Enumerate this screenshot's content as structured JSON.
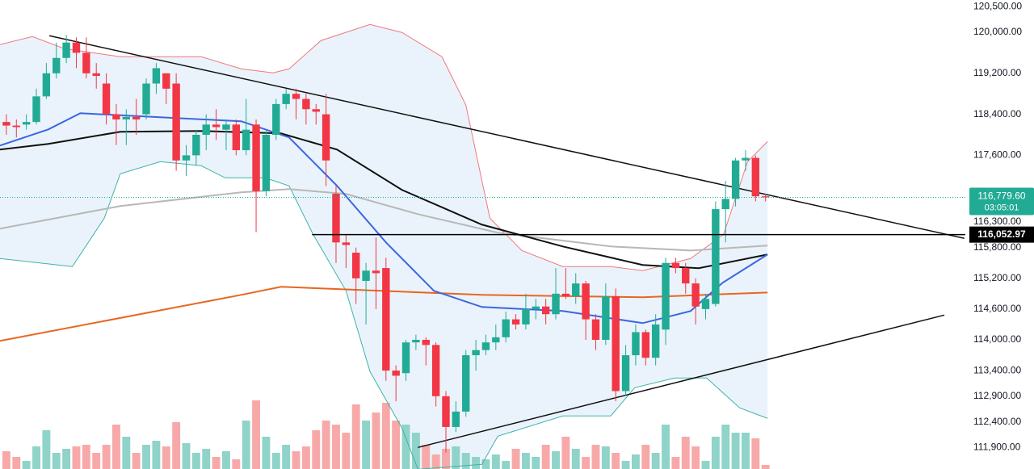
{
  "chart_data": {
    "type": "candlestick",
    "xlim": [
      -0.64,
      96
    ],
    "ylim": [
      111480,
      120630
    ],
    "yticks": [
      {
        "value": 120500,
        "label": "120,500.00"
      },
      {
        "value": 120000,
        "label": "120,000.00"
      },
      {
        "value": 119200,
        "label": "119,200.00"
      },
      {
        "value": 118400,
        "label": "118,400.00"
      },
      {
        "value": 117600,
        "label": "117,600.00"
      },
      {
        "value": 116300,
        "label": "116,300.00"
      },
      {
        "value": 115800,
        "label": "115,800.00"
      },
      {
        "value": 115200,
        "label": "115,200.00"
      },
      {
        "value": 114600,
        "label": "114,600.00"
      },
      {
        "value": 114000,
        "label": "114,000.00"
      },
      {
        "value": 113400,
        "label": "113,400.00"
      },
      {
        "value": 112900,
        "label": "112,900.00"
      },
      {
        "value": 112400,
        "label": "112,400.00"
      },
      {
        "value": 111900,
        "label": "111,900.00"
      }
    ],
    "up_color": "#22ab94",
    "down_color": "#f23645",
    "candles": {
      "open": [
        118250,
        118180,
        118200,
        118250,
        118750,
        119200,
        119500,
        119800,
        119600,
        119200,
        119000,
        118400,
        118300,
        118350,
        118400,
        119000,
        119200,
        119000,
        117500,
        117600,
        118000,
        118200,
        118100,
        118200,
        117700,
        118200,
        116900,
        118000,
        118600,
        118800,
        118700,
        118500,
        118400,
        116850,
        115900,
        115700,
        115150,
        115350,
        115400,
        113400,
        113350,
        113950,
        114000,
        113900,
        112900,
        112300,
        112600,
        113700,
        113800,
        113950,
        114050,
        114400,
        114300,
        114600,
        114650,
        114500,
        114900,
        114850,
        115100,
        114400,
        114000,
        114850,
        113000,
        113700,
        114150,
        113650,
        114200,
        115500,
        115400,
        115100,
        114600,
        114700,
        116550,
        116750,
        117500,
        117550,
        116800
      ],
      "high": [
        118400,
        118300,
        118400,
        118900,
        119400,
        119800,
        119950,
        119900,
        119900,
        119400,
        119200,
        118600,
        118500,
        118700,
        119100,
        119400,
        119200,
        119200,
        117800,
        118100,
        118400,
        118500,
        118300,
        118300,
        118700,
        118300,
        118100,
        118700,
        118900,
        118900,
        118800,
        118600,
        118800,
        117000,
        116050,
        115800,
        115500,
        116000,
        115600,
        113500,
        114000,
        114100,
        114050,
        113950,
        113000,
        112800,
        113800,
        114000,
        114100,
        114300,
        114550,
        114500,
        114900,
        114800,
        114800,
        115400,
        115400,
        115300,
        115150,
        114500,
        115100,
        115000,
        113900,
        114300,
        114200,
        114500,
        115600,
        115600,
        115500,
        115200,
        114900,
        116700,
        117100,
        117550,
        117700,
        117600,
        116850
      ],
      "low": [
        118000,
        117950,
        118100,
        118200,
        118700,
        119100,
        119400,
        119300,
        119100,
        118900,
        118200,
        117800,
        117800,
        118000,
        118300,
        118800,
        118600,
        117300,
        117200,
        117400,
        117700,
        117900,
        117700,
        117600,
        117600,
        116100,
        116800,
        117900,
        118500,
        118300,
        118200,
        118200,
        117000,
        115500,
        115400,
        114700,
        114300,
        114600,
        113200,
        112800,
        113200,
        113800,
        113500,
        112700,
        111800,
        112200,
        112500,
        113400,
        113700,
        113800,
        113950,
        114200,
        114200,
        114400,
        114300,
        114400,
        114800,
        114700,
        114000,
        113800,
        113900,
        112800,
        112900,
        113500,
        113500,
        113500,
        113900,
        115300,
        114900,
        114300,
        114400,
        114650,
        115900,
        116600,
        117300,
        116700,
        116700
      ],
      "close": [
        118180,
        118150,
        118250,
        118750,
        119200,
        119500,
        119800,
        119600,
        119200,
        119150,
        118400,
        118300,
        118350,
        118300,
        119000,
        119300,
        118900,
        117500,
        117600,
        118000,
        118200,
        118150,
        118200,
        117700,
        118100,
        116900,
        118000,
        118600,
        118800,
        118700,
        118500,
        118450,
        117500,
        115900,
        115850,
        115200,
        115350,
        115300,
        113400,
        113300,
        113950,
        114000,
        113900,
        112900,
        112300,
        112600,
        113700,
        113800,
        113950,
        114050,
        114400,
        114300,
        114600,
        114650,
        114500,
        114900,
        114850,
        115100,
        114400,
        114000,
        114850,
        113000,
        113700,
        114150,
        113650,
        114300,
        115500,
        115400,
        115100,
        114650,
        114800,
        116550,
        116750,
        117500,
        117550,
        116800,
        116780
      ]
    },
    "volume": {
      "ylim": [
        0,
        100
      ],
      "up_color": "#8fd3c9",
      "down_color": "#f7a9a9",
      "values": [
        22,
        15,
        10,
        28,
        48,
        20,
        25,
        28,
        30,
        20,
        30,
        55,
        40,
        20,
        30,
        35,
        28,
        58,
        32,
        20,
        25,
        15,
        22,
        12,
        60,
        85,
        40,
        20,
        30,
        22,
        28,
        48,
        60,
        55,
        45,
        80,
        60,
        70,
        82,
        60,
        55,
        45,
        30,
        18,
        25,
        28,
        20,
        15,
        12,
        18,
        10,
        25,
        20,
        15,
        30,
        22,
        40,
        25,
        15,
        30,
        28,
        20,
        10,
        18,
        30,
        20,
        55,
        15,
        40,
        28,
        10,
        40,
        55,
        45,
        45,
        38,
        5
      ]
    },
    "band": {
      "fill": "#eaf3fb",
      "upper": {
        "color": "#f0787a",
        "x": [
          -0.64,
          2.6,
          5.8,
          11.4,
          19.5,
          23.5,
          26.7,
          28.3,
          31.5,
          36.4,
          39.6,
          43.6,
          46,
          48.4,
          51.6,
          55.7,
          60.5,
          63.7,
          68.5,
          71.8,
          74.2,
          76.2
        ],
        "values": [
          119760,
          119917,
          119681,
          119524,
          119524,
          119287,
          119209,
          119287,
          119839,
          120154,
          119996,
          119524,
          118579,
          116374,
          115743,
          115429,
          115429,
          115350,
          115586,
          116059,
          117476,
          117870
        ]
      },
      "lower": {
        "color": "#3fb3a4",
        "x": [
          -0.64,
          6.6,
          9.8,
          11.4,
          15.4,
          19.5,
          21.9,
          25.9,
          28.3,
          30.7,
          34,
          36.4,
          39.6,
          41.2,
          47.6,
          49.2,
          55.7,
          60.5,
          62.9,
          66.9,
          70.1,
          73.4,
          76.2
        ],
        "values": [
          115586,
          115429,
          116374,
          117240,
          117476,
          117397,
          117161,
          117161,
          117004,
          116059,
          114956,
          113381,
          112279,
          111475,
          111570,
          112121,
          112515,
          112515,
          113066,
          113255,
          113255,
          112673,
          112468
        ]
      }
    },
    "lines": [
      {
        "color": "#e8661f",
        "width": 2,
        "x": [
          -0.64,
          23.5,
          27.5,
          47.6,
          63.7,
          76.2
        ],
        "values": [
          113979,
          114877,
          115035,
          114877,
          114830,
          114924
        ]
      },
      {
        "color": "#b8b8b8",
        "width": 2,
        "x": [
          -0.64,
          11.4,
          23.5,
          28.3,
          34,
          41.2,
          49.2,
          60.5,
          68.5,
          76.2
        ],
        "values": [
          116169,
          116610,
          116878,
          116941,
          116846,
          116452,
          116090,
          115822,
          115743,
          115838
        ]
      },
      {
        "color": "#111111",
        "width": 2,
        "x": [
          -0.64,
          4.2,
          11.4,
          19.5,
          27.5,
          33.1,
          39.6,
          47.6,
          55.7,
          63.7,
          69.3,
          76.2
        ],
        "values": [
          117712,
          117823,
          118059,
          118075,
          118027,
          117712,
          116925,
          116248,
          115822,
          115460,
          115397,
          115665
        ]
      },
      {
        "color": "#3b66e0",
        "width": 2,
        "x": [
          -0.64,
          4.2,
          7.4,
          15.4,
          23.5,
          28.3,
          33.1,
          38,
          42.8,
          47.6,
          55.7,
          63.7,
          68.5,
          71.7,
          76.2
        ],
        "values": [
          117791,
          118106,
          118421,
          118342,
          118264,
          117949,
          117004,
          115901,
          114956,
          114641,
          114562,
          114326,
          114562,
          115114,
          115665
        ]
      },
      {
        "color": "#111111",
        "width": 1.5,
        "x": [
          4.3,
          95.9
        ],
        "values": [
          119933,
          115980
        ]
      },
      {
        "color": "#111111",
        "width": 1.5,
        "x": [
          41.2,
          93.9
        ],
        "values": [
          111900,
          114483
        ]
      }
    ],
    "level": {
      "value": 116052.97,
      "label": "116,052.97",
      "x_start": 30.6,
      "color": "#000000"
    },
    "last_price": {
      "value": 116779.6,
      "label": "116,779.60",
      "countdown": "03:05:01",
      "color": "#22ab94"
    }
  }
}
